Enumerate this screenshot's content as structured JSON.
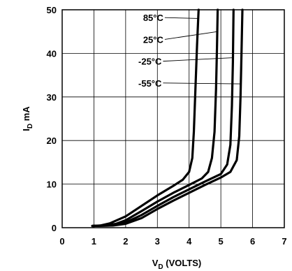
{
  "chart_data": {
    "type": "line",
    "xlabel_main": "V",
    "xlabel_sub": "D",
    "xlabel_rest": " (VOLTS)",
    "ylabel_main": "I",
    "ylabel_sub": "D",
    "ylabel_rest": " mA",
    "xlim": [
      0,
      7
    ],
    "ylim": [
      0,
      50
    ],
    "x_ticks": [
      0,
      1,
      2,
      3,
      4,
      5,
      6,
      7
    ],
    "y_ticks": [
      0,
      10,
      20,
      30,
      40,
      50
    ],
    "grid": true,
    "series": [
      {
        "name": "85°C",
        "points": [
          [
            0.95,
            0.4
          ],
          [
            1.2,
            0.5
          ],
          [
            1.5,
            1.0
          ],
          [
            2.0,
            2.6
          ],
          [
            2.5,
            5.0
          ],
          [
            3.0,
            7.4
          ],
          [
            3.5,
            9.6
          ],
          [
            3.8,
            11.0
          ],
          [
            4.0,
            12.8
          ],
          [
            4.1,
            16.0
          ],
          [
            4.15,
            22.0
          ],
          [
            4.2,
            32.0
          ],
          [
            4.25,
            42.0
          ],
          [
            4.3,
            50.0
          ]
        ],
        "label_at": [
          4.3,
          48
        ]
      },
      {
        "name": "25°C",
        "points": [
          [
            0.95,
            0.4
          ],
          [
            1.3,
            0.5
          ],
          [
            1.7,
            0.9
          ],
          [
            2.0,
            1.7
          ],
          [
            2.5,
            3.8
          ],
          [
            3.0,
            6.0
          ],
          [
            3.5,
            8.0
          ],
          [
            4.0,
            9.8
          ],
          [
            4.4,
            11.3
          ],
          [
            4.6,
            12.8
          ],
          [
            4.72,
            16.0
          ],
          [
            4.8,
            22.0
          ],
          [
            4.85,
            32.0
          ],
          [
            4.88,
            42.0
          ],
          [
            4.9,
            50.0
          ]
        ],
        "label_at": [
          4.9,
          45
        ]
      },
      {
        "name": "-25°C",
        "points": [
          [
            0.95,
            0.4
          ],
          [
            1.5,
            0.5
          ],
          [
            2.0,
            1.2
          ],
          [
            2.5,
            2.9
          ],
          [
            3.0,
            5.0
          ],
          [
            3.5,
            7.0
          ],
          [
            4.0,
            8.8
          ],
          [
            4.5,
            10.6
          ],
          [
            5.0,
            12.3
          ],
          [
            5.2,
            14.5
          ],
          [
            5.3,
            19.0
          ],
          [
            5.35,
            28.0
          ],
          [
            5.38,
            38.0
          ],
          [
            5.4,
            50.0
          ]
        ],
        "label_at": [
          5.35,
          39
        ]
      },
      {
        "name": "-55°C",
        "points": [
          [
            0.95,
            0.4
          ],
          [
            1.6,
            0.5
          ],
          [
            2.0,
            0.9
          ],
          [
            2.5,
            2.2
          ],
          [
            3.0,
            4.3
          ],
          [
            3.5,
            6.2
          ],
          [
            4.0,
            8.0
          ],
          [
            4.5,
            9.8
          ],
          [
            5.0,
            11.5
          ],
          [
            5.3,
            12.8
          ],
          [
            5.5,
            15.5
          ],
          [
            5.58,
            21.0
          ],
          [
            5.62,
            30.0
          ],
          [
            5.65,
            40.0
          ],
          [
            5.68,
            50.0
          ]
        ],
        "label_at": [
          5.6,
          33
        ]
      }
    ],
    "labels": [
      {
        "series": 0,
        "text_x": 2.55,
        "text_y": 48.2
      },
      {
        "series": 1,
        "text_x": 2.55,
        "text_y": 43.2
      },
      {
        "series": 2,
        "text_x": 2.4,
        "text_y": 38.2
      },
      {
        "series": 3,
        "text_x": 2.4,
        "text_y": 33.2
      }
    ]
  }
}
